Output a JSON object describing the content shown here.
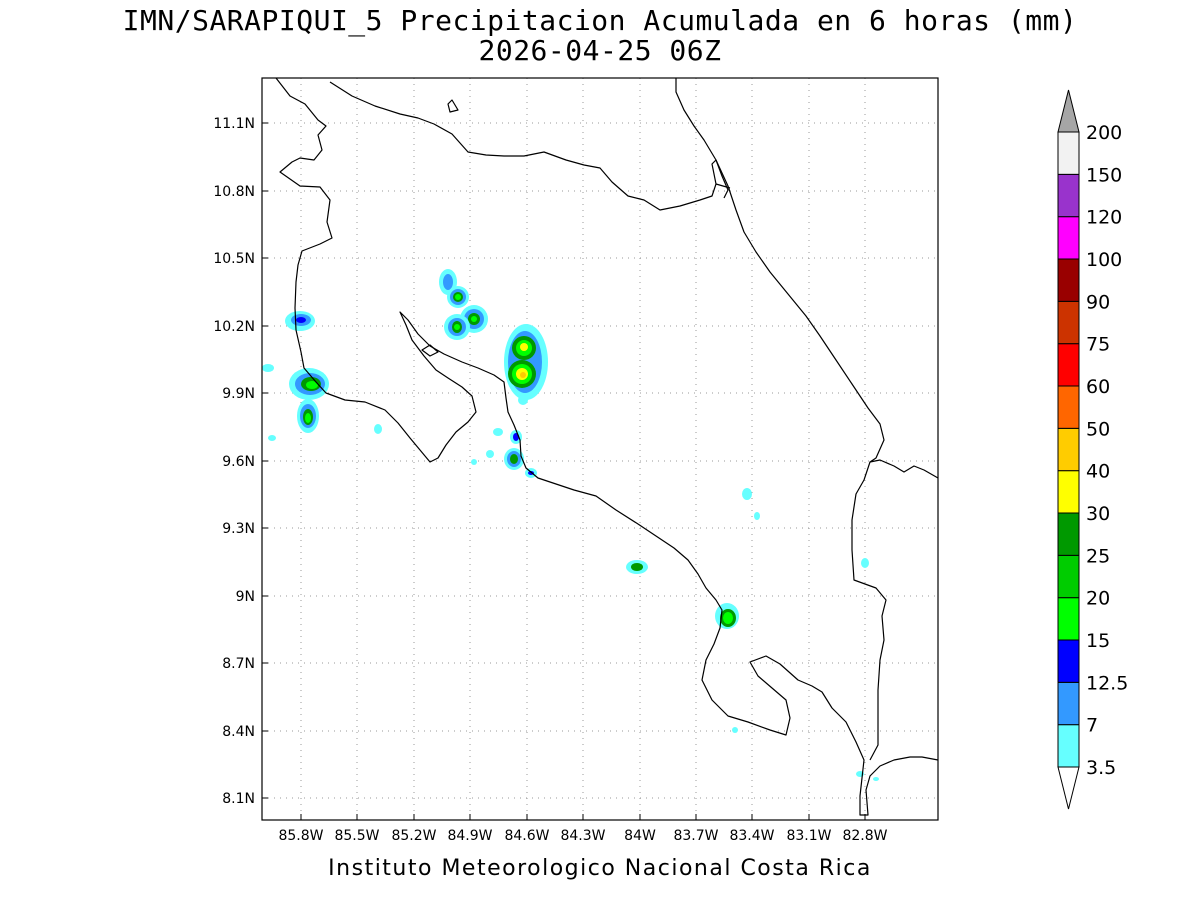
{
  "title": {
    "line1": "IMN/SARAPIQUI_5 Precipitacion Acumulada en 6 horas (mm)",
    "line2": "2026-04-25 06Z"
  },
  "footer": "Instituto Meteorologico Nacional Costa Rica",
  "map": {
    "lat_labels": [
      "11.1N",
      "10.8N",
      "10.5N",
      "10.2N",
      "9.9N",
      "9.6N",
      "9.3N",
      "9N",
      "8.7N",
      "8.4N",
      "8.1N"
    ],
    "lon_labels": [
      "85.8W",
      "85.5W",
      "85.2W",
      "84.9W",
      "84.6W",
      "84.3W",
      "84W",
      "83.7W",
      "83.4W",
      "83.1W",
      "82.8W"
    ],
    "gridlines": "dotted"
  },
  "legend": {
    "labels": [
      "3.5",
      "7",
      "12.5",
      "15",
      "20",
      "25",
      "30",
      "40",
      "50",
      "60",
      "75",
      "90",
      "100",
      "120",
      "150",
      "200"
    ],
    "colors": [
      "#ffffff",
      "#66ffff",
      "#3399ff",
      "#0000ff",
      "#00ff00",
      "#00cc00",
      "#009900",
      "#ffff00",
      "#ffcc00",
      "#ff6600",
      "#ff0000",
      "#cc3300",
      "#990000",
      "#ff00ff",
      "#9933cc",
      "#f2f2f2",
      "#a6a6a6"
    ]
  }
}
